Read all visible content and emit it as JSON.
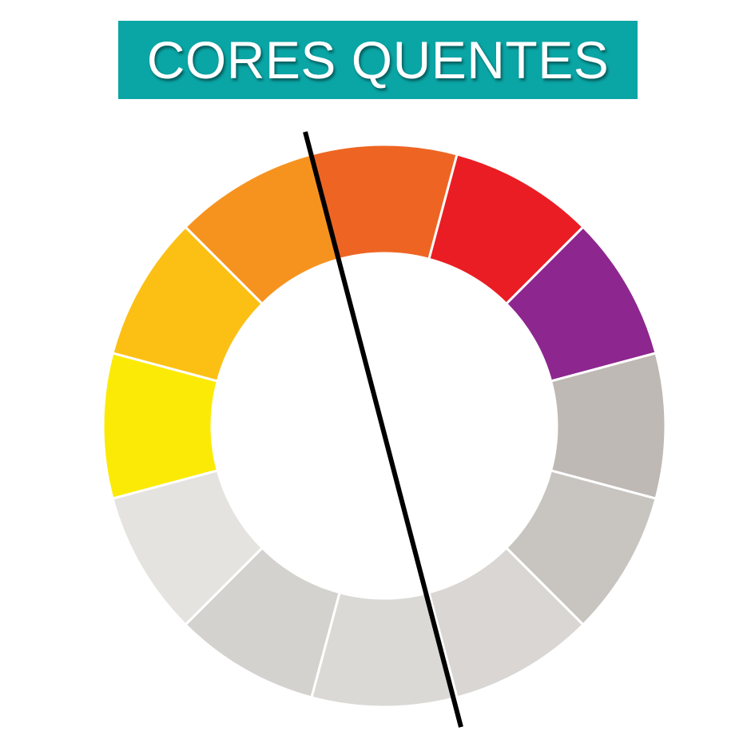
{
  "title": {
    "text": "CORES QUENTES",
    "background_color": "#0aa5a5",
    "text_color": "#ffffff"
  },
  "color_wheel": {
    "segment_count": 12,
    "segments": [
      {
        "name": "yellow",
        "color": "#fbea06",
        "group": "warm"
      },
      {
        "name": "yellow-orange",
        "color": "#fcc015",
        "group": "warm"
      },
      {
        "name": "orange",
        "color": "#f6931f",
        "group": "warm"
      },
      {
        "name": "red-orange",
        "color": "#ee6523",
        "group": "warm"
      },
      {
        "name": "red",
        "color": "#ea1d24",
        "group": "warm"
      },
      {
        "name": "violet",
        "color": "#8d268f",
        "group": "warm"
      },
      {
        "name": "gray-6",
        "color": "#beb9b4",
        "group": "desaturated"
      },
      {
        "name": "gray-7",
        "color": "#c8c5c1",
        "group": "desaturated"
      },
      {
        "name": "gray-8",
        "color": "#d9d6d3",
        "group": "desaturated"
      },
      {
        "name": "gray-9",
        "color": "#dbd9d6",
        "group": "desaturated"
      },
      {
        "name": "gray-10",
        "color": "#d4d2cf",
        "group": "desaturated"
      },
      {
        "name": "gray-11",
        "color": "#e5e3e0",
        "group": "desaturated"
      }
    ],
    "separator_color": "#ffffff",
    "divider_line_color": "#000000"
  }
}
